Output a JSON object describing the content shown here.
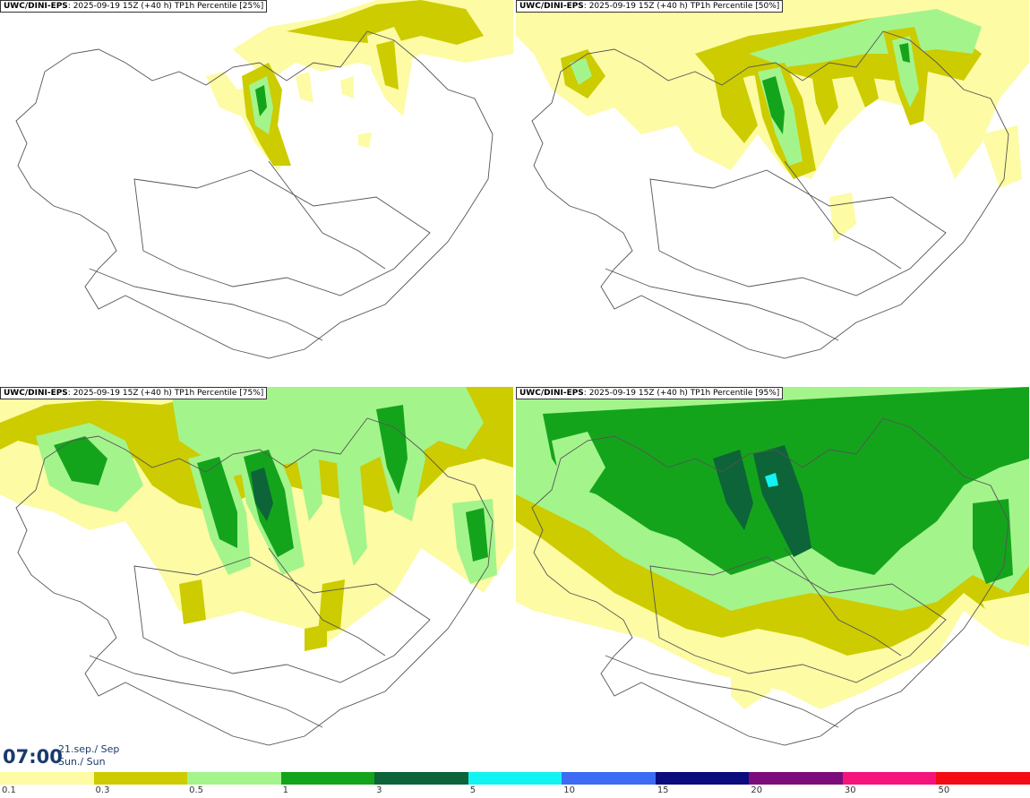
{
  "panels": [
    {
      "model": "UWC/DINI-EPS",
      "run": "2025-09-19 15Z (+40 h)",
      "field": "TP1h Percentile [25%]"
    },
    {
      "model": "UWC/DINI-EPS",
      "run": "2025-09-19 15Z (+40 h)",
      "field": "TP1h Percentile [50%]"
    },
    {
      "model": "UWC/DINI-EPS",
      "run": "2025-09-19 15Z (+40 h)",
      "field": "TP1h Percentile [75%]"
    },
    {
      "model": "UWC/DINI-EPS",
      "run": "2025-09-19 15Z (+40 h)",
      "field": "TP1h Percentile [95%]"
    }
  ],
  "valid_time": {
    "time": "07:00",
    "date_line1": "21.sep./ Sep",
    "date_line2": "Sun./ Sun"
  },
  "legend": {
    "colors": [
      "#fdfba4",
      "#cccc00",
      "#a4f48c",
      "#14a41c",
      "#0c6438",
      "#12f4f4",
      "#3c6cf4",
      "#0c0c7c",
      "#7c0c7c",
      "#f4147c",
      "#f40c14"
    ],
    "labels": [
      "0.1",
      "0.3",
      "0.5",
      "1",
      "3",
      "5",
      "10",
      "15",
      "20",
      "30",
      "50"
    ]
  }
}
